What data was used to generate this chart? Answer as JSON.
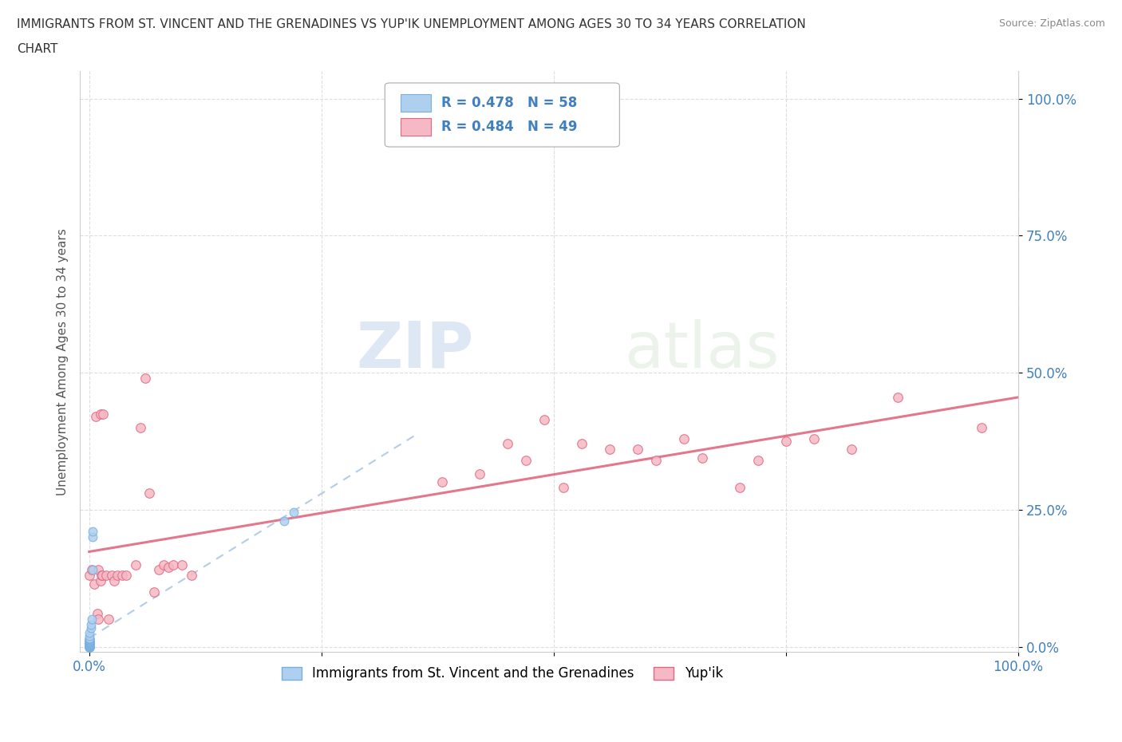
{
  "title_line1": "IMMIGRANTS FROM ST. VINCENT AND THE GRENADINES VS YUP'IK UNEMPLOYMENT AMONG AGES 30 TO 34 YEARS CORRELATION",
  "title_line2": "CHART",
  "source": "Source: ZipAtlas.com",
  "ylabel": "Unemployment Among Ages 30 to 34 years",
  "watermark_zip": "ZIP",
  "watermark_atlas": "atlas",
  "blue_R": 0.478,
  "blue_N": 58,
  "pink_R": 0.484,
  "pink_N": 49,
  "blue_color": "#aecfee",
  "blue_edge_color": "#7ab0e0",
  "pink_color": "#f5b8c4",
  "pink_edge_color": "#e06880",
  "pink_line_color": "#e06880",
  "blue_line_color": "#90b8e0",
  "blue_scatter_x": [
    0.0,
    0.0,
    0.0,
    0.0,
    0.0,
    0.0,
    0.0,
    0.0,
    0.0,
    0.0,
    0.0,
    0.0,
    0.0,
    0.0,
    0.0,
    0.0,
    0.0,
    0.0,
    0.0,
    0.0,
    0.0,
    0.0,
    0.0,
    0.0,
    0.0,
    0.0,
    0.0,
    0.0,
    0.0,
    0.0,
    0.0,
    0.0,
    0.0,
    0.0,
    0.0,
    0.0,
    0.0,
    0.0,
    0.0,
    0.0,
    0.0,
    0.0,
    0.0,
    0.0,
    0.0,
    0.0,
    0.0,
    0.0,
    0.0,
    0.0,
    0.002,
    0.002,
    0.003,
    0.004,
    0.004,
    0.004,
    0.21,
    0.22
  ],
  "blue_scatter_y": [
    0.0,
    0.0,
    0.0,
    0.0,
    0.0,
    0.0,
    0.0,
    0.0,
    0.0,
    0.0,
    0.0,
    0.0,
    0.0,
    0.0,
    0.0,
    0.0,
    0.0,
    0.0,
    0.001,
    0.001,
    0.001,
    0.001,
    0.001,
    0.001,
    0.002,
    0.002,
    0.002,
    0.002,
    0.003,
    0.003,
    0.004,
    0.004,
    0.005,
    0.005,
    0.006,
    0.007,
    0.007,
    0.008,
    0.008,
    0.009,
    0.01,
    0.01,
    0.011,
    0.012,
    0.013,
    0.014,
    0.015,
    0.016,
    0.02,
    0.025,
    0.035,
    0.04,
    0.05,
    0.14,
    0.2,
    0.21,
    0.23,
    0.245
  ],
  "pink_scatter_x": [
    0.0,
    0.003,
    0.005,
    0.007,
    0.009,
    0.01,
    0.01,
    0.012,
    0.012,
    0.013,
    0.014,
    0.015,
    0.018,
    0.021,
    0.024,
    0.027,
    0.03,
    0.035,
    0.04,
    0.05,
    0.055,
    0.06,
    0.065,
    0.07,
    0.075,
    0.08,
    0.085,
    0.09,
    0.1,
    0.11,
    0.38,
    0.42,
    0.45,
    0.47,
    0.49,
    0.51,
    0.53,
    0.56,
    0.59,
    0.61,
    0.64,
    0.66,
    0.7,
    0.72,
    0.75,
    0.78,
    0.82,
    0.87,
    0.96
  ],
  "pink_scatter_y": [
    0.13,
    0.14,
    0.115,
    0.42,
    0.06,
    0.05,
    0.14,
    0.425,
    0.12,
    0.13,
    0.13,
    0.425,
    0.13,
    0.05,
    0.13,
    0.12,
    0.13,
    0.13,
    0.13,
    0.15,
    0.4,
    0.49,
    0.28,
    0.1,
    0.14,
    0.15,
    0.145,
    0.15,
    0.15,
    0.13,
    0.3,
    0.315,
    0.37,
    0.34,
    0.415,
    0.29,
    0.37,
    0.36,
    0.36,
    0.34,
    0.38,
    0.345,
    0.29,
    0.34,
    0.375,
    0.38,
    0.36,
    0.455,
    0.4
  ],
  "ytick_labels": [
    "0.0%",
    "25.0%",
    "50.0%",
    "75.0%",
    "100.0%"
  ],
  "ytick_values": [
    0.0,
    0.25,
    0.5,
    0.75,
    1.0
  ],
  "xtick_labels": [
    "0.0%",
    "",
    "",
    "",
    "100.0%"
  ],
  "xtick_values": [
    0.0,
    0.25,
    0.5,
    0.75,
    1.0
  ],
  "legend_label_blue": "Immigrants from St. Vincent and the Grenadines",
  "legend_label_pink": "Yup'ik",
  "axis_color": "#4080c0",
  "tick_color": "#4080c0",
  "title_color": "#333333",
  "source_color": "#888888"
}
